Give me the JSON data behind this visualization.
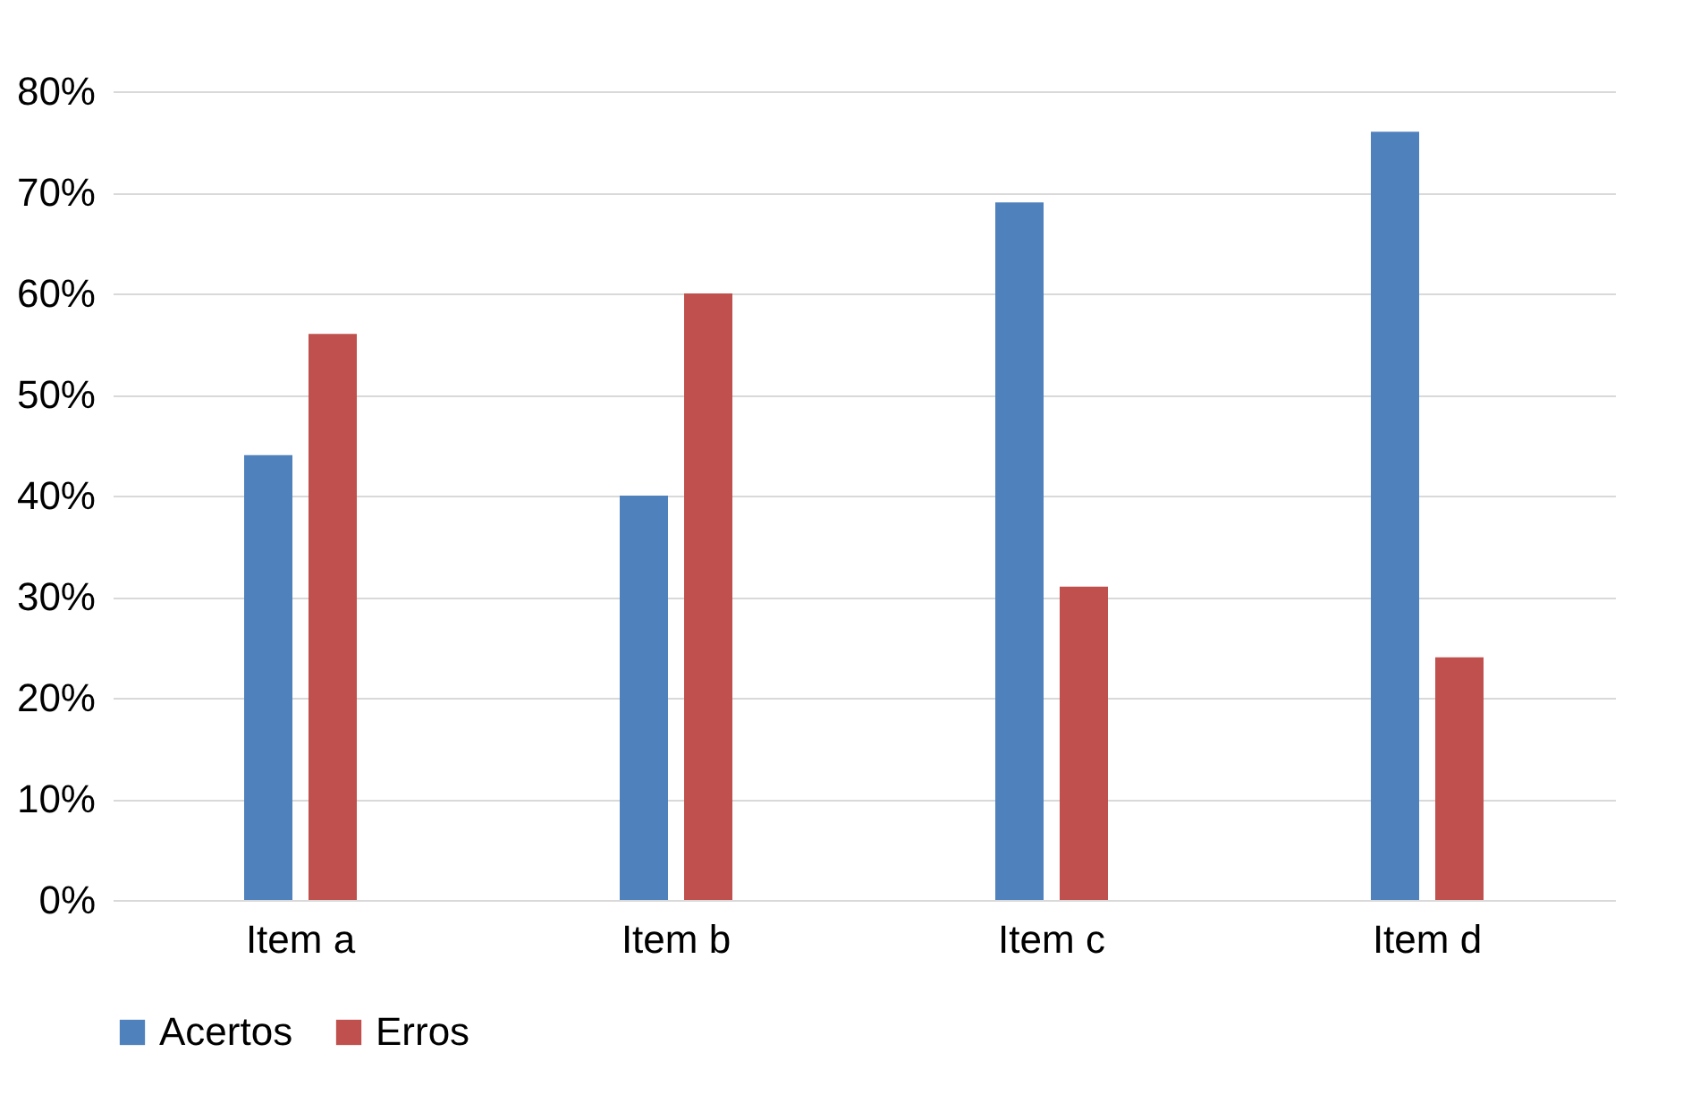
{
  "chart_data": {
    "type": "bar",
    "categories": [
      "Item a",
      "Item b",
      "Item c",
      "Item d"
    ],
    "series": [
      {
        "name": "Acertos",
        "color": "#4f81bd",
        "values": [
          44,
          40,
          69,
          76
        ]
      },
      {
        "name": "Erros",
        "color": "#c0504d",
        "values": [
          56,
          60,
          31,
          24
        ]
      }
    ],
    "ylim": [
      0,
      80
    ],
    "yticks": [
      {
        "value": 0,
        "label": "0%"
      },
      {
        "value": 10,
        "label": "10%"
      },
      {
        "value": 20,
        "label": "20%"
      },
      {
        "value": 30,
        "label": "30%"
      },
      {
        "value": 40,
        "label": "40%"
      },
      {
        "value": 50,
        "label": "50%"
      },
      {
        "value": 60,
        "label": "60%"
      },
      {
        "value": 70,
        "label": "70%"
      },
      {
        "value": 80,
        "label": "80%"
      }
    ],
    "grid": "y",
    "legend": "bottom"
  }
}
